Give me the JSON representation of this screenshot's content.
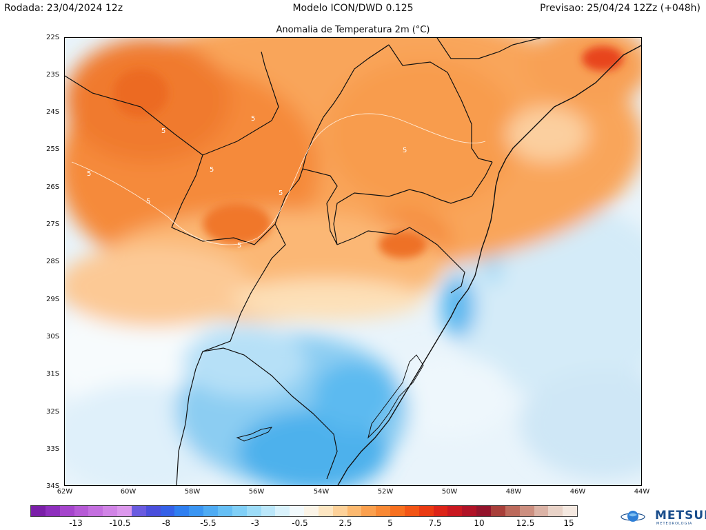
{
  "header": {
    "run": "Rodada: 23/04/2024 12z",
    "model": "Modelo ICON/DWD 0.125",
    "forecast": "Previsao: 25/04/24 12Zz (+048h)"
  },
  "map": {
    "title": "Anomalia de Temperatura 2m (°C)",
    "lat_ticks": [
      "22S",
      "23S",
      "24S",
      "25S",
      "26S",
      "27S",
      "28S",
      "29S",
      "30S",
      "31S",
      "32S",
      "33S",
      "34S"
    ],
    "lon_ticks": [
      "62W",
      "60W",
      "58W",
      "56W",
      "54W",
      "52W",
      "50W",
      "48W",
      "46W",
      "44W"
    ],
    "contour_labels": [
      "5",
      "5",
      "5",
      "5",
      "5",
      "5",
      "5",
      "5"
    ]
  },
  "legend": {
    "tick_labels": [
      "-13",
      "-10.5",
      "-8",
      "-5.5",
      "-3",
      "-0.5",
      "2.5",
      "5",
      "7.5",
      "10",
      "12.5",
      "15"
    ],
    "colors": [
      "#7a1fa8",
      "#8e2fbd",
      "#a545cc",
      "#b65ad6",
      "#c46fdf",
      "#d184e6",
      "#dc98ec",
      "#6a5be0",
      "#4a4fdc",
      "#3561e8",
      "#2f7ff0",
      "#3a95f2",
      "#4eabf3",
      "#66bff5",
      "#80cff7",
      "#9ddcf8",
      "#bbe7fa",
      "#d9f2fc",
      "#f2fafd",
      "#fbf4e7",
      "#fde6c2",
      "#fdd199",
      "#fcb970",
      "#fba04e",
      "#f98935",
      "#f7701f",
      "#f25515",
      "#ea3a12",
      "#dc2418",
      "#c91820",
      "#b01327",
      "#93142c",
      "#a83f3a",
      "#bc6a5c",
      "#cc8f80",
      "#dbb3a6",
      "#e9d3c8",
      "#f4e8e0"
    ]
  },
  "brand": {
    "name": "METSUL",
    "tagline": "METEOROLOGIA",
    "icon": "globe-icon"
  }
}
